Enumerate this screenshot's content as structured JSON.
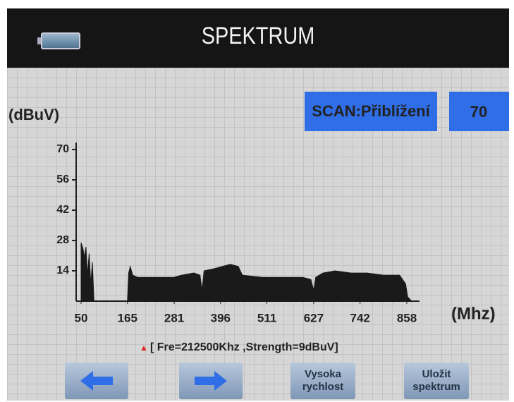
{
  "header": {
    "title": "SPEKTRUM"
  },
  "scan": {
    "mode": "SCAN:Přiblížení",
    "level": 70
  },
  "chart_data": {
    "type": "area",
    "y_label": "(dBuV)",
    "x_label": "(Mhz)",
    "color": "#1a1a1a",
    "x": [
      50,
      55,
      58,
      62,
      66,
      70,
      74,
      78,
      82,
      165,
      168,
      172,
      178,
      190,
      230,
      280,
      300,
      330,
      345,
      350,
      355,
      380,
      400,
      420,
      440,
      450,
      500,
      560,
      600,
      620,
      627,
      632,
      650,
      680,
      720,
      760,
      800,
      840,
      855,
      860,
      870
    ],
    "values": [
      27,
      24,
      20,
      25,
      12,
      22,
      8,
      18,
      0,
      0,
      13,
      16,
      12,
      11,
      11,
      11,
      12,
      13,
      12,
      5,
      14,
      15,
      16,
      17,
      16,
      12,
      11,
      11,
      11,
      10,
      5,
      11,
      13,
      14,
      13,
      13,
      12,
      12,
      8,
      2,
      0
    ],
    "xlim": [
      50,
      858
    ],
    "ylim": [
      0,
      70
    ],
    "xticks": [
      50,
      165,
      281,
      396,
      511,
      627,
      742,
      858
    ],
    "yticks": [
      14,
      28,
      42,
      56,
      70
    ]
  },
  "status": {
    "marker": "▲",
    "text": "[ Fre=212500Khz ,Strength=9dBuV]"
  },
  "buttons": [
    {
      "label": "Vysoka rychlost"
    },
    {
      "label": "Uložit spektrum"
    }
  ]
}
